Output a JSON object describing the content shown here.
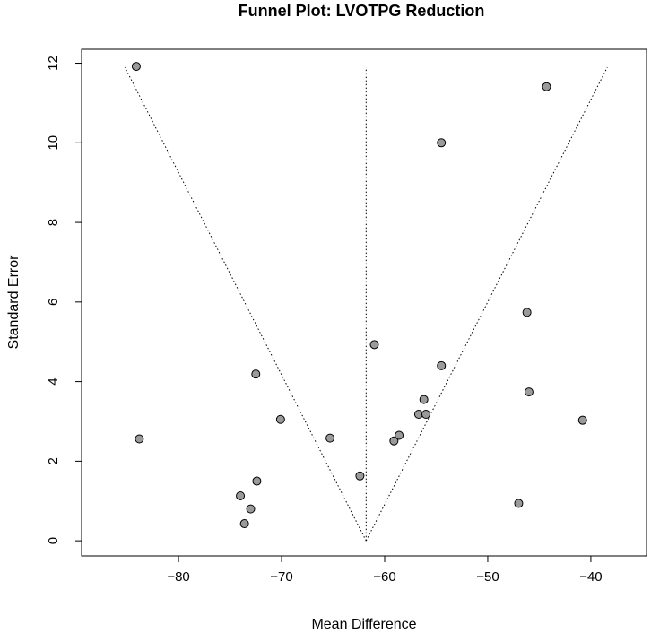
{
  "chart_data": {
    "type": "scatter",
    "title": "Funnel Plot: LVOTPG Reduction",
    "xlabel": "Mean Difference",
    "ylabel": "Standard Error",
    "xlim": [
      -89.4,
      -34.6
    ],
    "ylim": [
      12.35,
      -0.38
    ],
    "y_reversed": true,
    "xticks": [
      -80,
      -70,
      -60,
      -50,
      -40
    ],
    "yticks": [
      0,
      2,
      4,
      6,
      8,
      10,
      12
    ],
    "grid": false,
    "pooled_estimate": -61.8,
    "funnel": {
      "apex": [
        -61.8,
        0
      ],
      "base_left": [
        -85.2,
        11.9
      ],
      "base_right": [
        -38.4,
        11.9
      ]
    },
    "points": [
      {
        "x": -73.6,
        "y": 0.43
      },
      {
        "x": -73.0,
        "y": 0.8
      },
      {
        "x": -74.0,
        "y": 1.13
      },
      {
        "x": -72.4,
        "y": 1.5
      },
      {
        "x": -62.4,
        "y": 1.63
      },
      {
        "x": -83.8,
        "y": 2.56
      },
      {
        "x": -65.3,
        "y": 2.58
      },
      {
        "x": -70.1,
        "y": 3.05
      },
      {
        "x": -59.1,
        "y": 2.51
      },
      {
        "x": -58.6,
        "y": 2.65
      },
      {
        "x": -56.7,
        "y": 3.18
      },
      {
        "x": -56.0,
        "y": 3.18
      },
      {
        "x": -56.2,
        "y": 3.55
      },
      {
        "x": -72.5,
        "y": 4.19
      },
      {
        "x": -54.5,
        "y": 4.4
      },
      {
        "x": -61.0,
        "y": 4.93
      },
      {
        "x": -47.0,
        "y": 0.94
      },
      {
        "x": -40.8,
        "y": 3.03
      },
      {
        "x": -46.0,
        "y": 3.74
      },
      {
        "x": -46.2,
        "y": 5.74
      },
      {
        "x": -54.5,
        "y": 10.0
      },
      {
        "x": -44.3,
        "y": 11.41
      },
      {
        "x": -84.1,
        "y": 11.92
      }
    ],
    "colors": {
      "point_fill": "#9a9a9a",
      "point_stroke": "#000000",
      "axis": "#000000"
    }
  }
}
